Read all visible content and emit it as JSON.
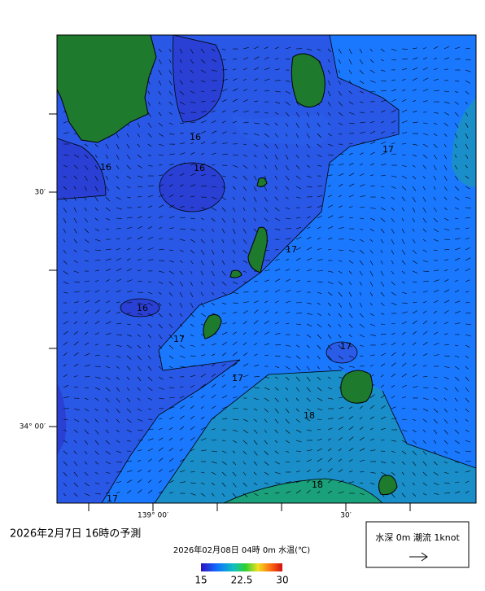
{
  "map": {
    "axis_labels": {
      "left": [
        "30′",
        "34° 00′"
      ],
      "bottom": [
        "139° 00′",
        "30′"
      ]
    },
    "contour_labels": [
      16,
      16,
      16,
      16,
      17,
      17,
      17,
      17,
      17,
      17,
      18,
      18
    ],
    "caption": "2026年2月7日 16時の予測",
    "colorbar": {
      "title": "2026年02月08日 04時 0m 水温(℃)",
      "ticks": [
        15,
        22.5,
        30
      ]
    },
    "legend": "水深 0m 潮流 1knot"
  }
}
